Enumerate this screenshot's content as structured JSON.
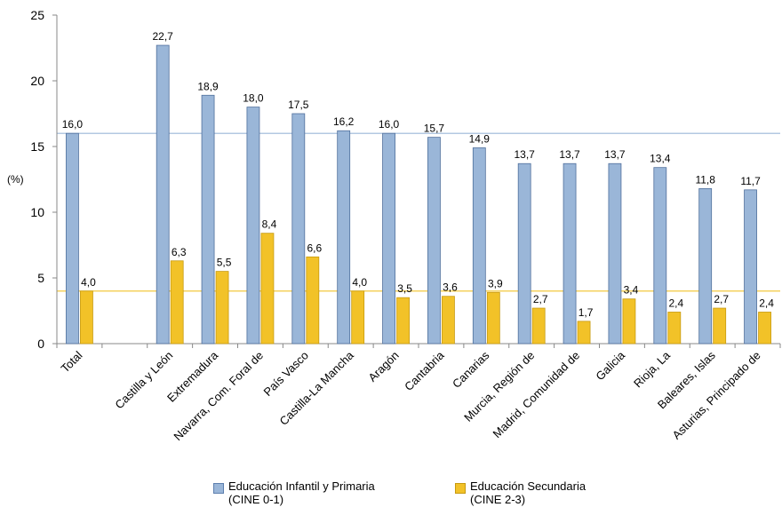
{
  "chart_data": {
    "type": "bar",
    "ylabel": "(%)",
    "ylim": [
      0,
      25
    ],
    "yticks": [
      "0",
      "5",
      "10",
      "15",
      "20",
      "25"
    ],
    "categories": [
      "Total",
      "",
      "Castilla y León",
      "Extremadura",
      "Navarra, Com. Foral de",
      "País Vasco",
      "Castilla-La Mancha",
      "Aragón",
      "Cantabria",
      "Canarias",
      "Murcia, Región de",
      "Madrid, Comunidad de",
      "Galicia",
      "Rioja, La",
      "Baleares, Islas",
      "Asturias, Principado de"
    ],
    "series": [
      {
        "name": "Educación Infantil y Primaria (CINE 0-1)",
        "color": "#9ab6d8",
        "values": [
          16.0,
          null,
          22.7,
          18.9,
          18.0,
          17.5,
          16.2,
          16.0,
          15.7,
          14.9,
          13.7,
          13.7,
          13.7,
          13.4,
          11.8,
          11.7
        ],
        "labels": [
          "16,0",
          "",
          "22,7",
          "18,9",
          "18,0",
          "17,5",
          "16,2",
          "16,0",
          "15,7",
          "14,9",
          "13,7",
          "13,7",
          "13,7",
          "13,4",
          "11,8",
          "11,7"
        ]
      },
      {
        "name": "Educación Secundaria (CINE 2-3)",
        "color": "#f2c228",
        "values": [
          4.0,
          null,
          6.3,
          5.5,
          8.4,
          6.6,
          4.0,
          3.5,
          3.6,
          3.9,
          2.7,
          1.7,
          3.4,
          2.4,
          2.7,
          2.4
        ],
        "labels": [
          "4,0",
          "",
          "6,3",
          "5,5",
          "8,4",
          "6,6",
          "4,0",
          "3,5",
          "3,6",
          "3,9",
          "2,7",
          "1,7",
          "3,4",
          "2,4",
          "2,7",
          "2,4"
        ]
      }
    ],
    "reference_lines": [
      {
        "value": 16.0,
        "color": "#9ab6d8"
      },
      {
        "value": 4.0,
        "color": "#f2c228"
      }
    ],
    "legend": {
      "position": "bottom",
      "infantil": [
        "Educación Infantil y Primaria",
        "(CINE 0-1)"
      ],
      "secundaria": [
        "Educación Secundaria",
        "(CINE 2-3)"
      ]
    }
  }
}
